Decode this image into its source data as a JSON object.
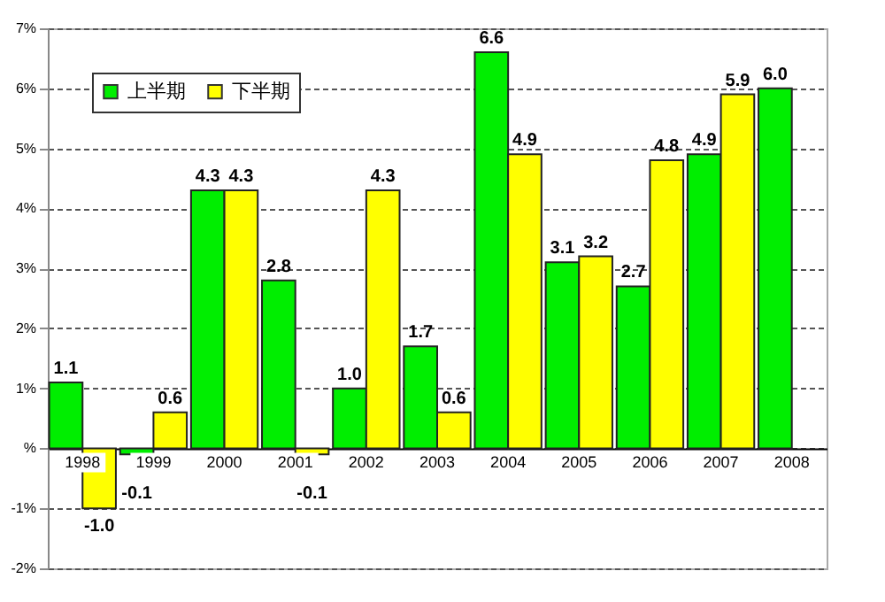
{
  "chart_data": {
    "type": "bar",
    "categories": [
      "1998",
      "1999",
      "2000",
      "2001",
      "2002",
      "2003",
      "2004",
      "2005",
      "2006",
      "2007",
      "2008"
    ],
    "series": [
      {
        "name": "上半期",
        "color": "#00ee00",
        "values": [
          1.1,
          -0.1,
          4.3,
          2.8,
          1.0,
          1.7,
          6.6,
          3.1,
          2.7,
          4.9,
          6.0
        ],
        "value_labels": [
          "1.1",
          "-0.1",
          "4.3",
          "2.8",
          "1.0",
          "1.7",
          "6.6",
          "3.1",
          "2.7",
          "4.9",
          "6.0"
        ]
      },
      {
        "name": "下半期",
        "color": "#ffff00",
        "values": [
          -1.0,
          0.6,
          4.3,
          -0.1,
          4.3,
          0.6,
          4.9,
          3.2,
          4.8,
          5.9,
          null
        ],
        "value_labels": [
          "-1.0",
          "0.6",
          "4.3",
          "-0.1",
          "4.3",
          "0.6",
          "4.9",
          "3.2",
          "4.8",
          "5.9",
          null
        ]
      }
    ],
    "ylim": [
      -2,
      7
    ],
    "yticks": [
      {
        "value": -2,
        "label": "-2%"
      },
      {
        "value": -1,
        "label": "-1%"
      },
      {
        "value": 0,
        "label": "%"
      },
      {
        "value": 1,
        "label": "1%"
      },
      {
        "value": 2,
        "label": "2%"
      },
      {
        "value": 3,
        "label": "3%"
      },
      {
        "value": 4,
        "label": "4%"
      },
      {
        "value": 5,
        "label": "5%"
      },
      {
        "value": 6,
        "label": "6%"
      },
      {
        "value": 7,
        "label": "7%"
      }
    ],
    "grid": "y",
    "legend": "top left",
    "data_labels": true
  }
}
